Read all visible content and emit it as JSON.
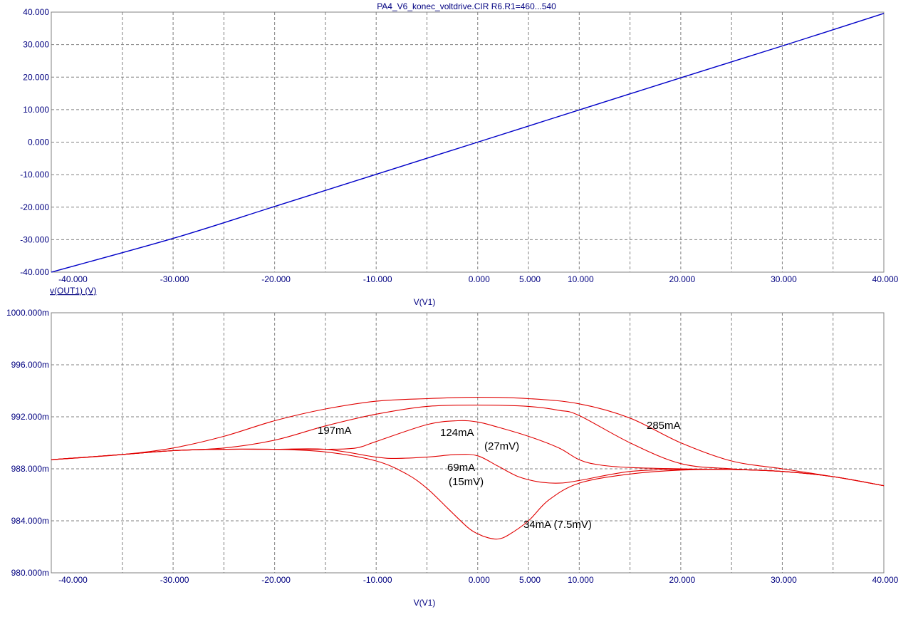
{
  "chart_data": [
    {
      "type": "line",
      "title": "PA4_V6_konec_voltdrive.CIR R6.R1=460...540",
      "xlabel": "V(V1)",
      "ylabel": "v(OUT1) (V)",
      "xlim": [
        -42,
        40
      ],
      "ylim": [
        -40,
        40
      ],
      "grid": true,
      "color": "#0000c8",
      "x_ticks": [
        "-40.000",
        "-30.000",
        "-20.000",
        "-10.000",
        "0.000",
        "5.000",
        "10.000",
        "20.000",
        "30.000",
        "40.000"
      ],
      "y_ticks": [
        "40.000",
        "30.000",
        "20.000",
        "10.000",
        "0.000",
        "-10.000",
        "-20.000",
        "-30.000",
        "-40.000"
      ],
      "series": [
        {
          "x": [
            -42,
            -30,
            -20,
            -10,
            0,
            10,
            20,
            30,
            40
          ],
          "y": [
            -40,
            -29.6,
            -19.8,
            -9.9,
            0,
            9.9,
            19.8,
            29.6,
            39.6
          ]
        }
      ]
    },
    {
      "type": "line",
      "xlabel": "V(V1)",
      "xlim": [
        -42,
        40
      ],
      "ylim": [
        980,
        1000
      ],
      "grid": true,
      "color": "#e00000",
      "x_ticks": [
        "-40.000",
        "-30.000",
        "-20.000",
        "-10.000",
        "0.000",
        "5.000",
        "10.000",
        "20.000",
        "30.000",
        "40.000"
      ],
      "y_ticks": [
        "1000.000m",
        "996.000m",
        "992.000m",
        "988.000m",
        "984.000m",
        "980.000m"
      ],
      "annotations": [
        "285mA",
        "197mA",
        "124mA",
        "(27mV)",
        "69mA",
        "(15mV)",
        "34mA  (7.5mV)"
      ],
      "series": [
        {
          "x": [
            -42,
            -35,
            -30,
            -25,
            -20,
            -15,
            -10,
            -5,
            0,
            5,
            10,
            15,
            20,
            25,
            30,
            35,
            40
          ],
          "y": [
            988.7,
            989.1,
            989.6,
            990.5,
            991.7,
            992.6,
            993.2,
            993.4,
            993.5,
            993.4,
            993.0,
            991.9,
            990.0,
            988.6,
            988.0,
            987.4,
            986.7
          ]
        },
        {
          "x": [
            -42,
            -35,
            -30,
            -25,
            -20,
            -15,
            -10,
            -5,
            0,
            5,
            8,
            10,
            15,
            20,
            25,
            30,
            35,
            40
          ],
          "y": [
            988.7,
            989.1,
            989.4,
            989.6,
            990.2,
            991.3,
            992.2,
            992.8,
            992.9,
            992.8,
            992.5,
            992.1,
            990.0,
            988.4,
            988.0,
            987.8,
            987.4,
            986.7
          ]
        },
        {
          "x": [
            -42,
            -35,
            -30,
            -25,
            -20,
            -15,
            -12,
            -10,
            -5,
            -2,
            0,
            2,
            5,
            8,
            10,
            12,
            15,
            20,
            25,
            30,
            35,
            40
          ],
          "y": [
            988.7,
            989.1,
            989.4,
            989.5,
            989.5,
            989.5,
            989.6,
            990.1,
            991.4,
            991.7,
            991.6,
            991.2,
            990.5,
            989.6,
            988.7,
            988.3,
            988.1,
            988.0,
            987.95,
            987.8,
            987.4,
            986.7
          ]
        },
        {
          "x": [
            -42,
            -35,
            -30,
            -25,
            -20,
            -15,
            -10,
            -8,
            -5,
            -2,
            0,
            2,
            4,
            6,
            8,
            10,
            15,
            20,
            25,
            30,
            35,
            40
          ],
          "y": [
            988.7,
            989.1,
            989.4,
            989.5,
            989.5,
            989.5,
            988.9,
            988.8,
            988.9,
            989.1,
            989.0,
            988.2,
            987.4,
            987.0,
            986.9,
            987.1,
            987.8,
            987.95,
            987.95,
            987.8,
            987.4,
            986.7
          ]
        },
        {
          "x": [
            -42,
            -35,
            -30,
            -25,
            -20,
            -15,
            -10,
            -7,
            -5,
            -3,
            -1,
            0,
            1,
            2,
            3,
            5,
            7,
            10,
            15,
            20,
            25,
            30,
            35,
            40
          ],
          "y": [
            988.7,
            989.1,
            989.4,
            989.5,
            989.5,
            989.3,
            988.6,
            987.6,
            986.5,
            985.0,
            983.5,
            983.0,
            982.7,
            982.6,
            982.9,
            984.0,
            985.6,
            986.9,
            987.6,
            987.9,
            987.95,
            987.8,
            987.4,
            986.7
          ]
        }
      ]
    }
  ]
}
